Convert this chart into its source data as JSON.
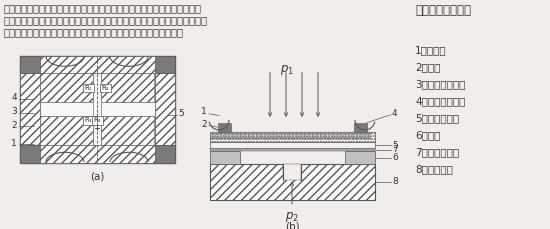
{
  "title": "扩散硅压力传感器",
  "description_lines": [
    "压力传感器是在单晶硅片上扩散一个惠斯通电桥，被测介质（气体或液体）",
    "施压使桥臂电阻值发生变化（压阻效应），产生一个差动电压信号。此信号经",
    "专用放大器，将量程相对应的信号转化成标准模拟信号或数字信号。"
  ],
  "legend_items": [
    "1／引出线",
    "2／电极",
    "3／扩散电阻引线",
    "4／扩散型应变片",
    "5／单晶硅膜片",
    "6／硅环",
    "7／玻璃粘接剂",
    "8／玻璃基板"
  ],
  "label_a": "(a)",
  "label_b": "(b)",
  "bg_color": "#f0eeeb",
  "line_color": "#555555",
  "dark_fill": "#7a7a7a",
  "text_color": "#333333",
  "font_size_desc": 7.2,
  "font_size_legend": 7.5,
  "font_size_title": 8.5,
  "font_size_label": 7.5,
  "font_size_nums": 6.5
}
